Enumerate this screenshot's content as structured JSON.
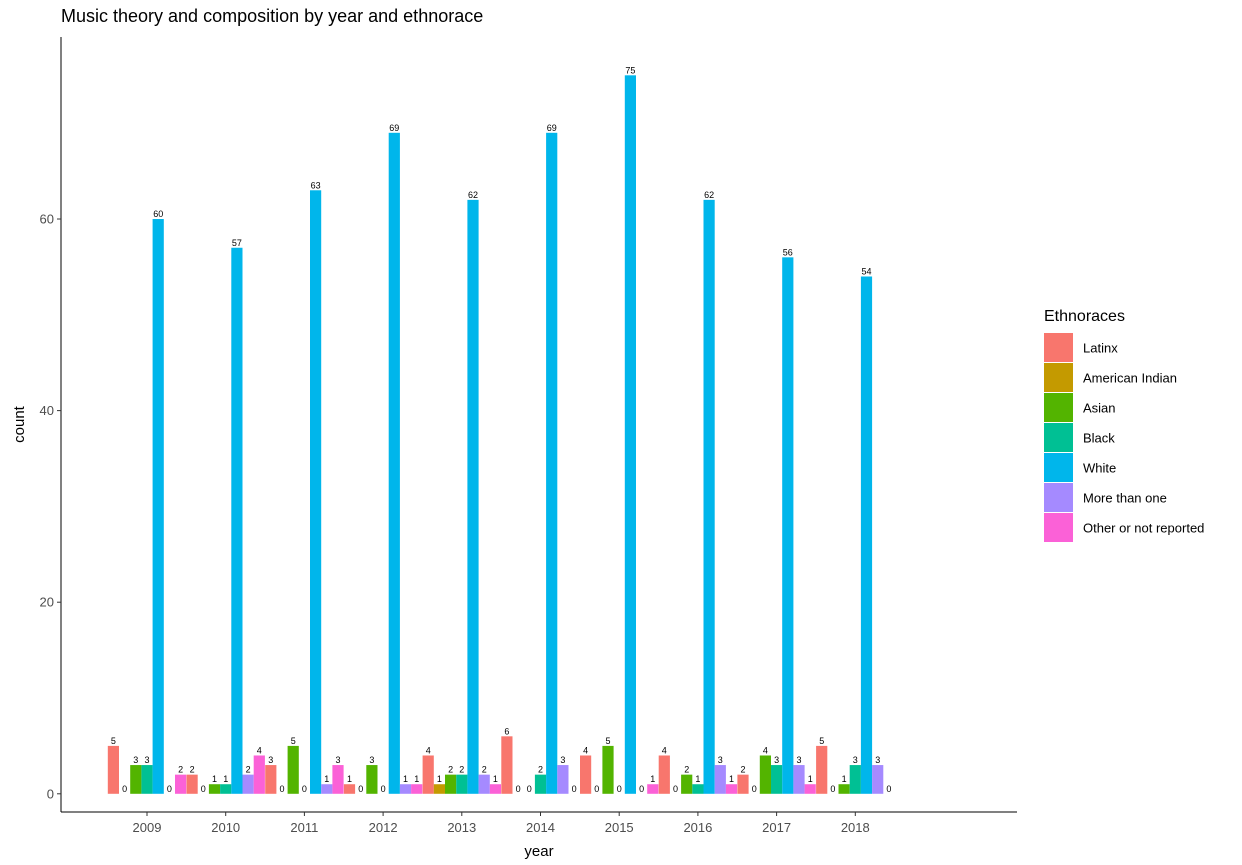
{
  "chart_data": {
    "type": "bar",
    "title": "Music theory and composition by year and ethnorace",
    "xlabel": "year",
    "ylabel": "count",
    "ylim": [
      -1.9,
      79
    ],
    "yticks": [
      0,
      20,
      40,
      60
    ],
    "grid": false,
    "legend_position": "right",
    "legend_title": "Ethnoraces",
    "categories": [
      "2009",
      "2010",
      "2011",
      "2012",
      "2013",
      "2014",
      "2015",
      "2016",
      "2017",
      "2018"
    ],
    "series": [
      {
        "name": "Latinx",
        "color": "#F8766D",
        "values": [
          5,
          2,
          3,
          1,
          4,
          6,
          4,
          4,
          2,
          5
        ]
      },
      {
        "name": "American Indian",
        "color": "#C49A00",
        "values": [
          0,
          0,
          0,
          0,
          1,
          0,
          0,
          0,
          0,
          0
        ]
      },
      {
        "name": "Asian",
        "color": "#53B400",
        "values": [
          3,
          1,
          5,
          3,
          2,
          0,
          5,
          2,
          4,
          1
        ]
      },
      {
        "name": "Black",
        "color": "#00C094",
        "values": [
          3,
          1,
          0,
          0,
          2,
          2,
          0,
          1,
          3,
          3
        ]
      },
      {
        "name": "White",
        "color": "#00B6EB",
        "values": [
          60,
          57,
          63,
          69,
          62,
          69,
          75,
          62,
          56,
          54
        ]
      },
      {
        "name": "More than one",
        "color": "#A58AFF",
        "values": [
          0,
          2,
          1,
          1,
          2,
          3,
          0,
          3,
          3,
          3
        ]
      },
      {
        "name": "Other or not reported",
        "color": "#FB61D7",
        "values": [
          2,
          4,
          3,
          1,
          1,
          0,
          1,
          1,
          1,
          0
        ]
      }
    ]
  }
}
